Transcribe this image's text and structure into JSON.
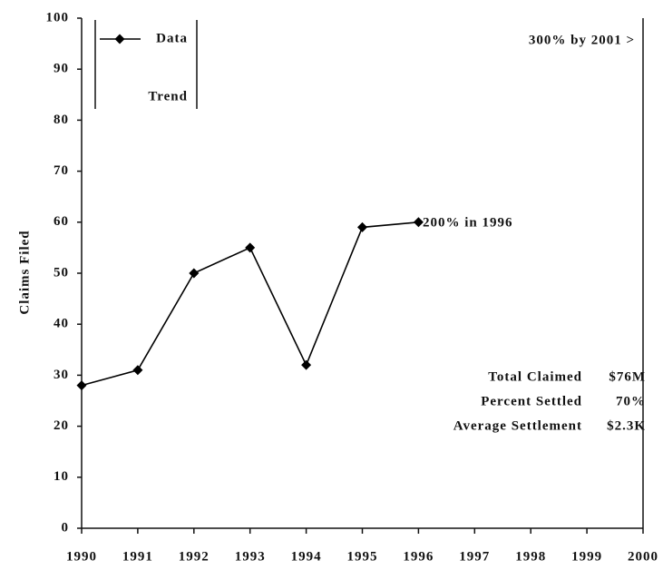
{
  "chart_data": {
    "type": "line",
    "ylabel": "Claims Filed",
    "x": [
      1990,
      1991,
      1992,
      1993,
      1994,
      1995,
      1996
    ],
    "series": [
      {
        "name": "Data",
        "color": "#000000",
        "values": [
          28,
          31,
          50,
          55,
          32,
          59,
          60
        ]
      },
      {
        "name": "Trend",
        "color": "#000000",
        "values": [
          null,
          null,
          null,
          null,
          null,
          null,
          null
        ]
      }
    ],
    "xlim": [
      1990,
      2000
    ],
    "xticks": [
      1990,
      1991,
      1992,
      1993,
      1994,
      1995,
      1996,
      1997,
      1998,
      1999,
      2000
    ],
    "ylim": [
      0,
      100
    ],
    "yticks": [
      0,
      10,
      20,
      30,
      40,
      50,
      60,
      70,
      80,
      90,
      100
    ],
    "annotations": [
      "300% by 2001 >",
      "200% in 1996"
    ],
    "stats": [
      {
        "label": "Total Claimed",
        "value": "$76M"
      },
      {
        "label": "Percent Settled",
        "value": "70%"
      },
      {
        "label": "Average Settlement",
        "value": "$2.3K"
      }
    ]
  }
}
